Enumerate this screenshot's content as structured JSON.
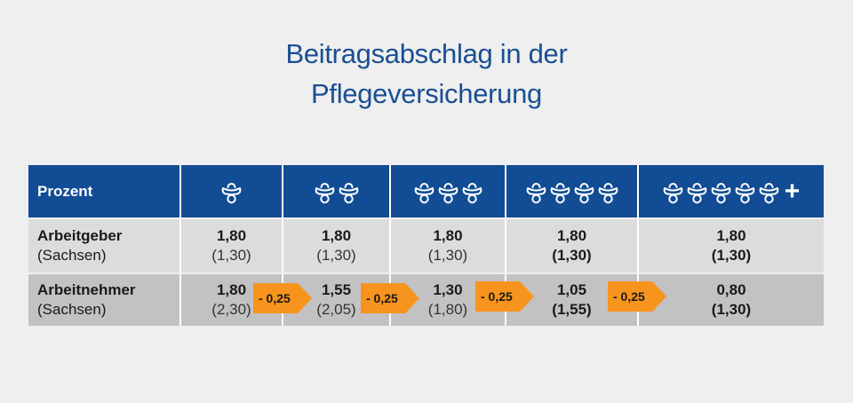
{
  "title_line1": "Beitragsabschlag in der",
  "title_line2": "Pflegeversicherung",
  "header": {
    "label": "Prozent",
    "columns": [
      {
        "icon_count": 1,
        "plus": ""
      },
      {
        "icon_count": 2,
        "plus": ""
      },
      {
        "icon_count": 3,
        "plus": ""
      },
      {
        "icon_count": 4,
        "plus": ""
      },
      {
        "icon_count": 5,
        "plus": "+"
      }
    ],
    "icon": "pacifier-icon"
  },
  "rows": [
    {
      "label": "Arbeitgeber",
      "sublabel": "(Sachsen)",
      "values": [
        "1,80",
        "1,80",
        "1,80",
        "1,80",
        "1,80"
      ],
      "subvalues": [
        "(1,30)",
        "(1,30)",
        "(1,30)",
        "(1,30)",
        "(1,30)"
      ]
    },
    {
      "label": "Arbeitnehmer",
      "sublabel": "(Sachsen)",
      "values": [
        "1,80",
        "1,55",
        "1,30",
        "1,05",
        "0,80"
      ],
      "subvalues": [
        "(2,30)",
        "(2,05)",
        "(1,80)",
        "(1,55)",
        "(1,30)"
      ]
    }
  ],
  "arrows": [
    "- 0,25",
    "- 0,25",
    "- 0,25",
    "- 0,25"
  ],
  "colors": {
    "title": "#1a4f93",
    "header_bg": "#124c94",
    "row1_bg": "#dcdcdc",
    "row2_bg": "#c2c2c2",
    "arrow": "#f7941d"
  }
}
